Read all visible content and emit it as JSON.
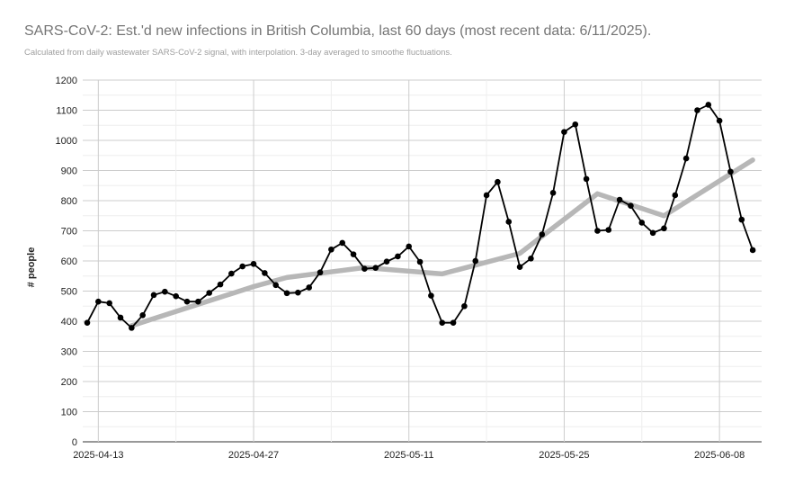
{
  "chart_data": {
    "type": "line",
    "title": "SARS-CoV-2: Est.'d new infections in British Columbia, last 60 days (most recent data: 6/11/2025).",
    "subtitle": "Calculated from daily wastewater SARS-CoV-2 signal, with interpolation. 3-day averaged to smoothe fluctuations.",
    "xlabel": "",
    "ylabel": "# people",
    "ylim": [
      0,
      1200
    ],
    "yticks": [
      0,
      100,
      200,
      300,
      400,
      500,
      600,
      700,
      800,
      900,
      1000,
      1100,
      1200
    ],
    "xlim": [
      "2025-04-12",
      "2025-06-11"
    ],
    "xticks": [
      "2025-04-13",
      "2025-04-27",
      "2025-05-11",
      "2025-05-25",
      "2025-06-08"
    ],
    "grid": true,
    "legend": "none",
    "series": [
      {
        "color": "#000000",
        "markers": true,
        "points": [
          [
            "2025-04-12",
            395
          ],
          [
            "2025-04-13",
            465
          ],
          [
            "2025-04-14",
            460
          ],
          [
            "2025-04-15",
            412
          ],
          [
            "2025-04-16",
            378
          ],
          [
            "2025-04-17",
            420
          ],
          [
            "2025-04-18",
            487
          ],
          [
            "2025-04-19",
            498
          ],
          [
            "2025-04-20",
            483
          ],
          [
            "2025-04-21",
            465
          ],
          [
            "2025-04-22",
            465
          ],
          [
            "2025-04-23",
            494
          ],
          [
            "2025-04-24",
            522
          ],
          [
            "2025-04-25",
            558
          ],
          [
            "2025-04-26",
            582
          ],
          [
            "2025-04-27",
            590
          ],
          [
            "2025-04-28",
            560
          ],
          [
            "2025-04-29",
            520
          ],
          [
            "2025-04-30",
            493
          ],
          [
            "2025-05-01",
            495
          ],
          [
            "2025-05-02",
            512
          ],
          [
            "2025-05-03",
            562
          ],
          [
            "2025-05-04",
            638
          ],
          [
            "2025-05-05",
            660
          ],
          [
            "2025-05-06",
            622
          ],
          [
            "2025-05-07",
            574
          ],
          [
            "2025-05-08",
            577
          ],
          [
            "2025-05-09",
            598
          ],
          [
            "2025-05-10",
            615
          ],
          [
            "2025-05-11",
            648
          ],
          [
            "2025-05-12",
            597
          ],
          [
            "2025-05-13",
            485
          ],
          [
            "2025-05-14",
            395
          ],
          [
            "2025-05-15",
            395
          ],
          [
            "2025-05-16",
            450
          ],
          [
            "2025-05-17",
            600
          ],
          [
            "2025-05-18",
            818
          ],
          [
            "2025-05-19",
            862
          ],
          [
            "2025-05-20",
            730
          ],
          [
            "2025-05-21",
            580
          ],
          [
            "2025-05-22",
            608
          ],
          [
            "2025-05-23",
            688
          ],
          [
            "2025-05-24",
            826
          ],
          [
            "2025-05-25",
            1028
          ],
          [
            "2025-05-26",
            1053
          ],
          [
            "2025-05-27",
            872
          ],
          [
            "2025-05-28",
            700
          ],
          [
            "2025-05-29",
            703
          ],
          [
            "2025-05-30",
            803
          ],
          [
            "2025-05-31",
            783
          ],
          [
            "2025-06-01",
            727
          ],
          [
            "2025-06-02",
            693
          ],
          [
            "2025-06-03",
            708
          ],
          [
            "2025-06-04",
            818
          ],
          [
            "2025-06-05",
            940
          ],
          [
            "2025-06-06",
            1100
          ],
          [
            "2025-06-07",
            1118
          ],
          [
            "2025-06-08",
            1065
          ],
          [
            "2025-06-09",
            896
          ],
          [
            "2025-06-10",
            737
          ],
          [
            "2025-06-11",
            636
          ]
        ]
      },
      {
        "color": "#b7b7b7",
        "markers": false,
        "points": [
          [
            "2025-04-16",
            385
          ],
          [
            "2025-04-27",
            515
          ],
          [
            "2025-04-30",
            545
          ],
          [
            "2025-05-07",
            578
          ],
          [
            "2025-05-14",
            557
          ],
          [
            "2025-05-21",
            625
          ],
          [
            "2025-05-28",
            823
          ],
          [
            "2025-06-03",
            750
          ],
          [
            "2025-06-11",
            935
          ]
        ]
      }
    ]
  }
}
